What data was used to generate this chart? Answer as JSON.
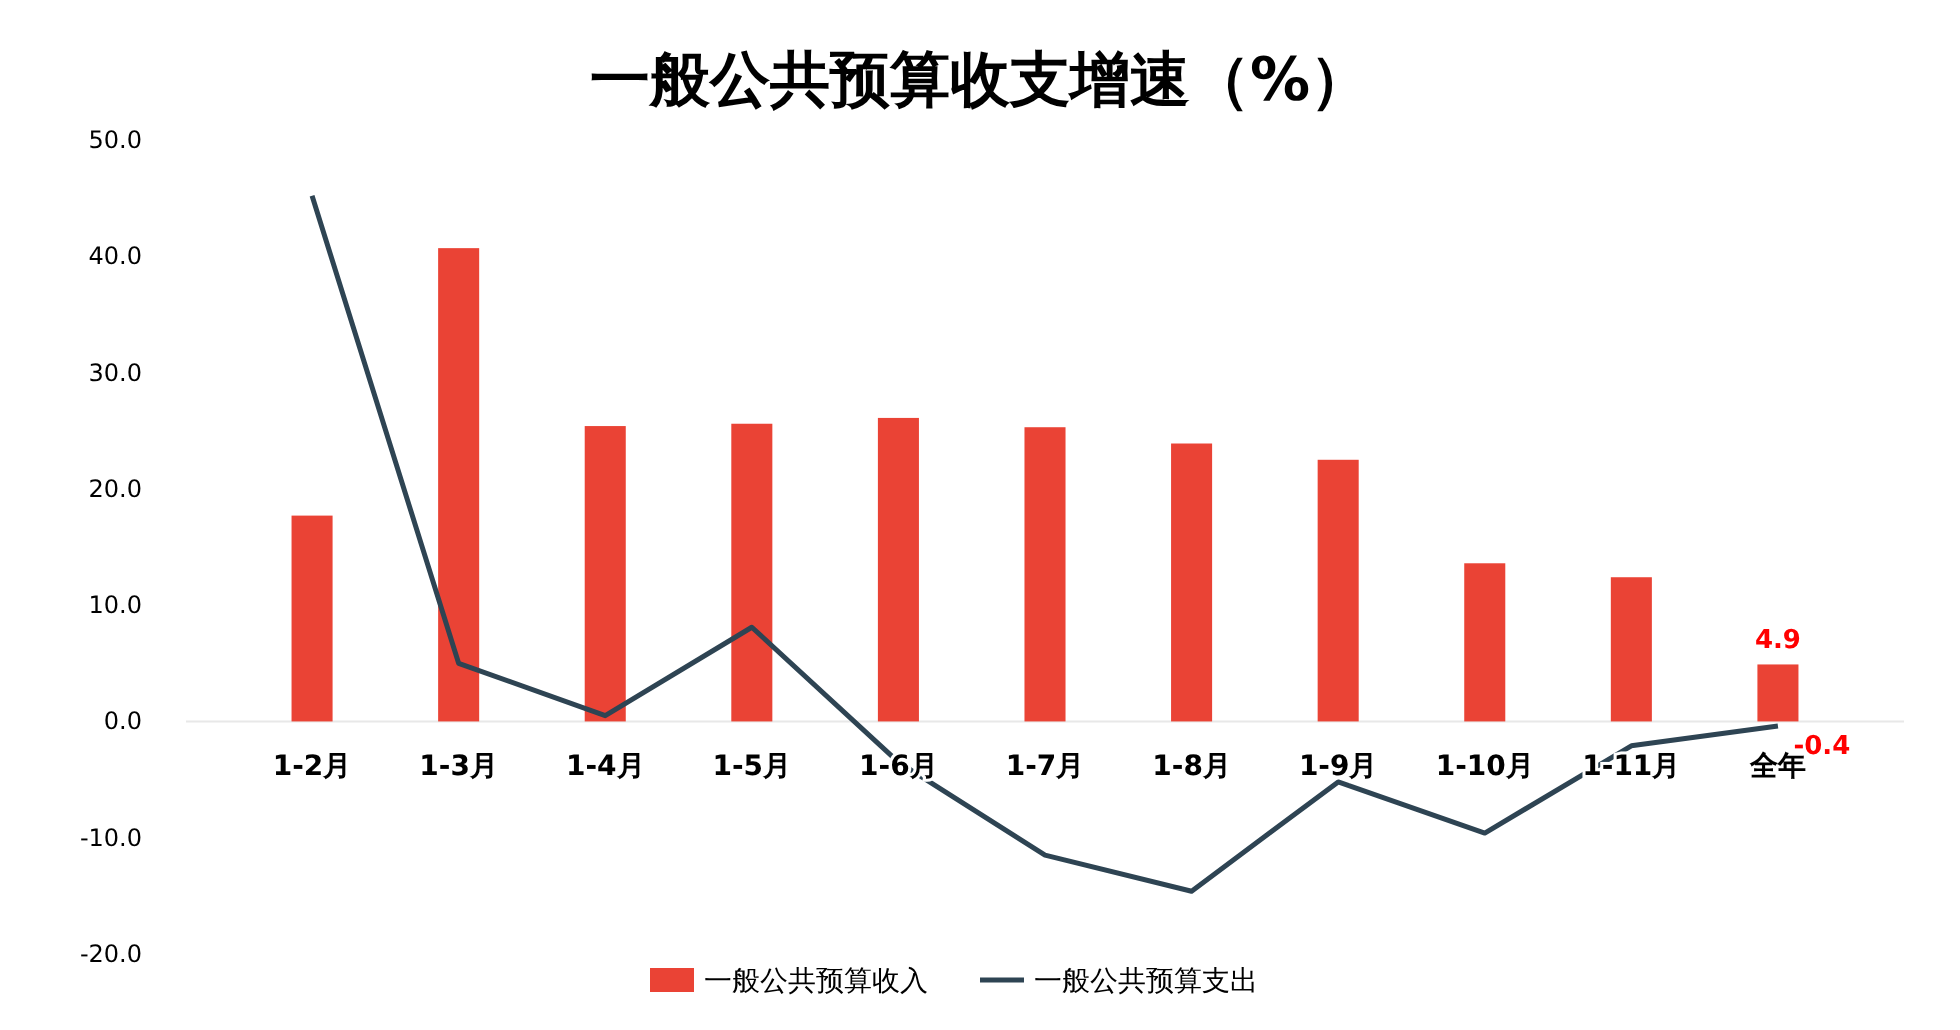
{
  "chart_data": {
    "type": "bar",
    "title": "一般公共预算收支增速（%）",
    "categories": [
      "1-2月",
      "1-3月",
      "1-4月",
      "1-5月",
      "1-6月",
      "1-7月",
      "1-8月",
      "1-9月",
      "1-10月",
      "1-11月",
      "全年"
    ],
    "series": [
      {
        "name": "一般公共预算收入",
        "color": "#ea4335",
        "values": [
          17.7,
          40.7,
          25.4,
          25.6,
          26.1,
          25.3,
          23.9,
          22.5,
          13.6,
          12.4,
          4.9
        ],
        "value_labels": [
          null,
          null,
          null,
          null,
          null,
          null,
          null,
          null,
          null,
          null,
          "4.9"
        ]
      },
      {
        "name": "一般公共预算支出",
        "type": "line",
        "color": "#2e4453",
        "values": [
          45.2,
          5.0,
          0.5,
          8.1,
          -3.5,
          -11.5,
          -14.6,
          -5.2,
          -9.6,
          -2.1,
          -0.4
        ],
        "value_labels": [
          null,
          null,
          null,
          null,
          null,
          null,
          null,
          null,
          null,
          null,
          "-0.4"
        ]
      }
    ],
    "ylim": [
      -20,
      50
    ],
    "yticks": [
      {
        "value": -20,
        "label": "-20.0"
      },
      {
        "value": -10,
        "label": "-10.0"
      },
      {
        "value": 0,
        "label": "0.0"
      },
      {
        "value": 10,
        "label": "10.0"
      },
      {
        "value": 20,
        "label": "20.0"
      },
      {
        "value": 30,
        "label": "30.0"
      },
      {
        "value": 40,
        "label": "40.0"
      },
      {
        "value": 50,
        "label": "50.0"
      }
    ],
    "grid": false,
    "legend": "bottom",
    "marker": "none",
    "line_style": "solid"
  }
}
